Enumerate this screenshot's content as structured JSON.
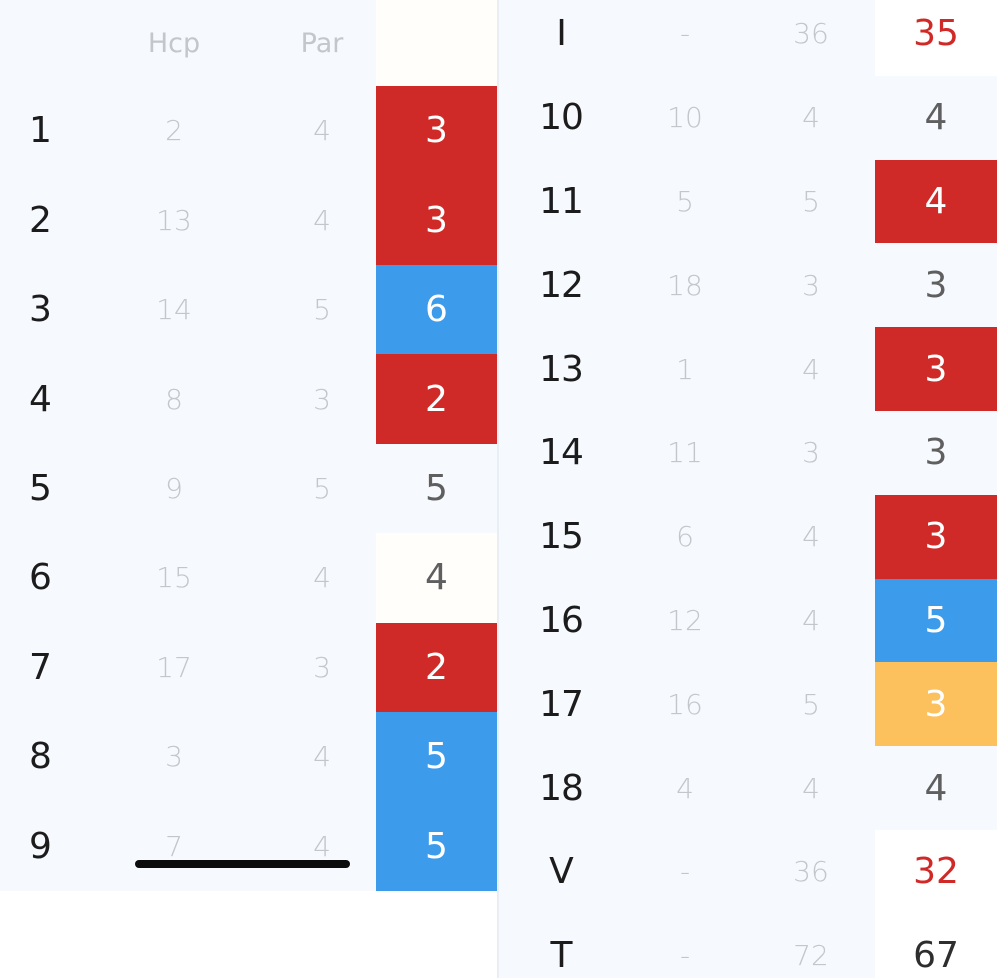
{
  "header": {
    "hcp_label": "Hcp",
    "par_label": "Par"
  },
  "front_nine": [
    {
      "hole": "1",
      "hcp": "2",
      "par": "4",
      "score": "3",
      "style": "s-red"
    },
    {
      "hole": "2",
      "hcp": "13",
      "par": "4",
      "score": "3",
      "style": "s-red"
    },
    {
      "hole": "3",
      "hcp": "14",
      "par": "5",
      "score": "6",
      "style": "s-blue"
    },
    {
      "hole": "4",
      "hcp": "8",
      "par": "3",
      "score": "2",
      "style": "s-red"
    },
    {
      "hole": "5",
      "hcp": "9",
      "par": "5",
      "score": "5",
      "style": "s-plain"
    },
    {
      "hole": "6",
      "hcp": "15",
      "par": "4",
      "score": "4",
      "style": "s-white"
    },
    {
      "hole": "7",
      "hcp": "17",
      "par": "3",
      "score": "2",
      "style": "s-red"
    },
    {
      "hole": "8",
      "hcp": "3",
      "par": "4",
      "score": "5",
      "style": "s-blue"
    },
    {
      "hole": "9",
      "hcp": "7",
      "par": "4",
      "score": "5",
      "style": "s-blue"
    }
  ],
  "back_panel": [
    {
      "hole": "I",
      "hcp": "-",
      "par": "36",
      "score": "35",
      "style": "s-total-red"
    },
    {
      "hole": "10",
      "hcp": "10",
      "par": "4",
      "score": "4",
      "style": "s-plain"
    },
    {
      "hole": "11",
      "hcp": "5",
      "par": "5",
      "score": "4",
      "style": "s-red"
    },
    {
      "hole": "12",
      "hcp": "18",
      "par": "3",
      "score": "3",
      "style": "s-plain"
    },
    {
      "hole": "13",
      "hcp": "1",
      "par": "4",
      "score": "3",
      "style": "s-red"
    },
    {
      "hole": "14",
      "hcp": "11",
      "par": "3",
      "score": "3",
      "style": "s-plain"
    },
    {
      "hole": "15",
      "hcp": "6",
      "par": "4",
      "score": "3",
      "style": "s-red"
    },
    {
      "hole": "16",
      "hcp": "12",
      "par": "4",
      "score": "5",
      "style": "s-blue"
    },
    {
      "hole": "17",
      "hcp": "16",
      "par": "5",
      "score": "3",
      "style": "s-orange"
    },
    {
      "hole": "18",
      "hcp": "4",
      "par": "4",
      "score": "4",
      "style": "s-plain"
    },
    {
      "hole": "V",
      "hcp": "-",
      "par": "36",
      "score": "32",
      "style": "s-total-red"
    },
    {
      "hole": "T",
      "hcp": "-",
      "par": "72",
      "score": "67",
      "style": "s-total-dark"
    }
  ]
}
